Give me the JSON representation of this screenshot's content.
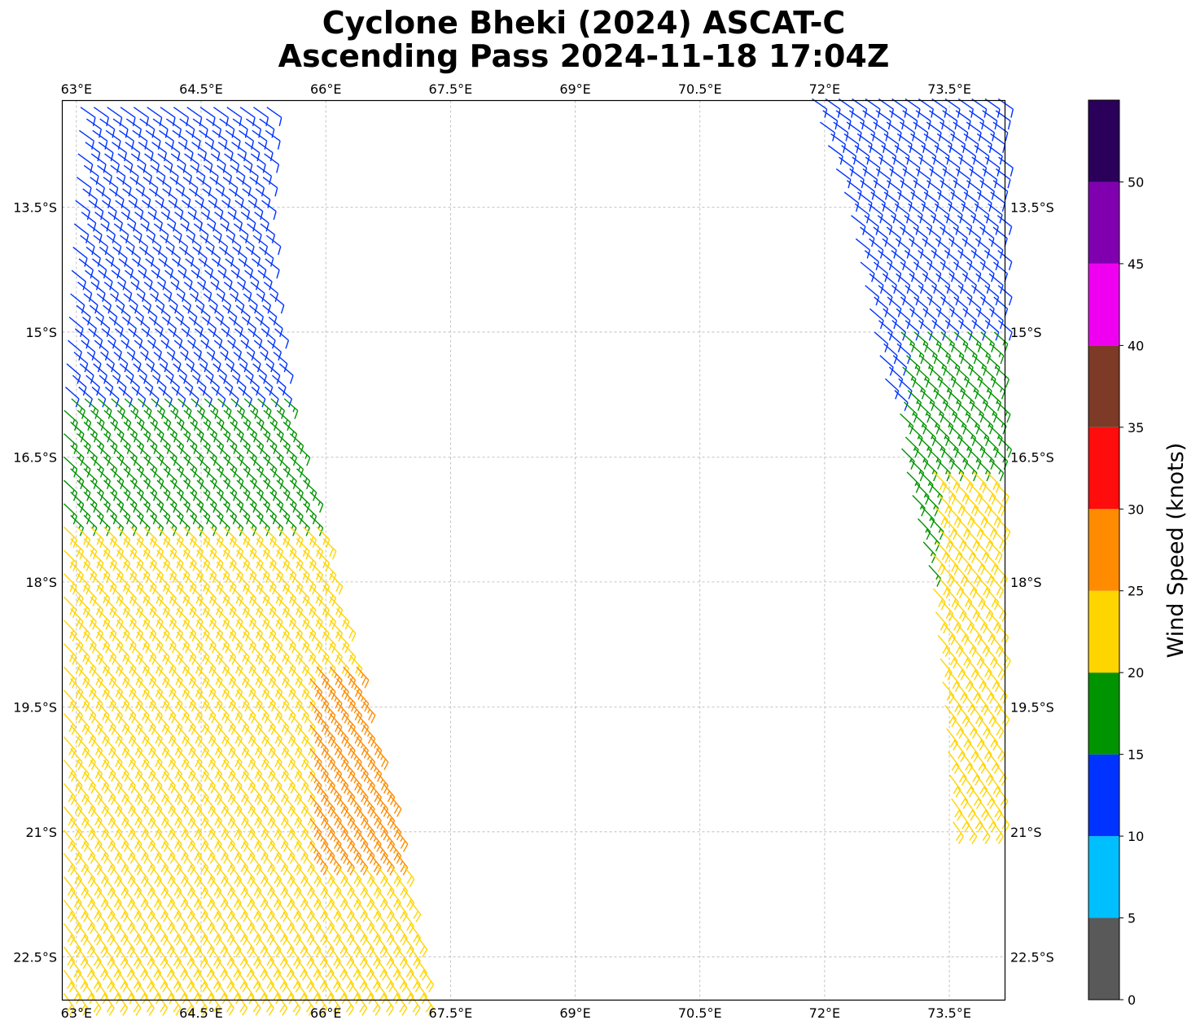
{
  "chart_data": {
    "type": "scatter",
    "title": [
      "Cyclone Bheki (2024) ASCAT-C",
      "Ascending Pass 2024-11-18 17:04Z"
    ],
    "xlim": [
      62.83,
      74.17
    ],
    "ylim": [
      -23.02,
      -12.22
    ],
    "x_ticks": [
      {
        "value": 63.0,
        "label": "63°E"
      },
      {
        "value": 64.5,
        "label": "64.5°E"
      },
      {
        "value": 66.0,
        "label": "66°E"
      },
      {
        "value": 67.5,
        "label": "67.5°E"
      },
      {
        "value": 69.0,
        "label": "69°E"
      },
      {
        "value": 70.5,
        "label": "70.5°E"
      },
      {
        "value": 72.0,
        "label": "72°E"
      },
      {
        "value": 73.5,
        "label": "73.5°E"
      }
    ],
    "y_ticks": [
      {
        "value": -13.5,
        "label": "13.5°S"
      },
      {
        "value": -15.0,
        "label": "15°S"
      },
      {
        "value": -16.5,
        "label": "16.5°S"
      },
      {
        "value": -18.0,
        "label": "18°S"
      },
      {
        "value": -19.5,
        "label": "19.5°S"
      },
      {
        "value": -21.0,
        "label": "21°S"
      },
      {
        "value": -22.5,
        "label": "22.5°S"
      }
    ],
    "grid": true,
    "colorbar": {
      "label": "Wind Speed (knots)",
      "bounds": [
        0,
        5,
        10,
        15,
        20,
        25,
        30,
        35,
        40,
        45,
        50,
        55
      ],
      "tick_labels": [
        "0",
        "5",
        "10",
        "15",
        "20",
        "25",
        "30",
        "35",
        "40",
        "45",
        "50"
      ],
      "colors": [
        "#595959",
        "#00bfff",
        "#0033ff",
        "#009400",
        "#ffd500",
        "#ff8c00",
        "#ff0d0d",
        "#7d3a27",
        "#f000f0",
        "#8000b0",
        "#2a005a"
      ]
    },
    "series": [
      {
        "swath": "west",
        "barb_color_by_speed": true,
        "grid_spacing_deg": [
          0.16,
          0.14
        ],
        "west_edge": [
          [
            -12.3,
            63.05
          ],
          [
            -16.0,
            62.85
          ],
          [
            -19.5,
            62.85
          ],
          [
            -23.0,
            62.85
          ]
        ],
        "east_edge": [
          [
            -12.3,
            65.3
          ],
          [
            -14.0,
            65.3
          ],
          [
            -16.0,
            65.55
          ],
          [
            -16.8,
            65.8
          ],
          [
            -18.0,
            66.1
          ],
          [
            -19.5,
            66.5
          ],
          [
            -21.0,
            66.9
          ],
          [
            -23.0,
            67.25
          ]
        ],
        "speed_regions": [
          {
            "speed_kt": 8,
            "lat_range": [
              -12.3,
              -14.5
            ],
            "lon_range": [
              63.5,
              65.3
            ]
          },
          {
            "speed_kt": 12,
            "lat_range": [
              -12.3,
              -16.8
            ],
            "lon_range": [
              62.85,
              65.5
            ]
          },
          {
            "speed_kt": 17,
            "lat_range": [
              -15.8,
              -20.4
            ],
            "lon_range": [
              62.85,
              65.9
            ]
          },
          {
            "speed_kt": 22,
            "lat_range": [
              -17.3,
              -23.0
            ],
            "lon_range": [
              62.85,
              67.25
            ]
          },
          {
            "speed_kt": 27,
            "lat_range": [
              -19.0,
              -21.3
            ],
            "lon_range": [
              65.8,
              66.9
            ]
          }
        ],
        "wind_direction": "SE trades, backing to E in the south"
      },
      {
        "swath": "east",
        "barb_color_by_speed": true,
        "grid_spacing_deg": [
          0.16,
          0.14
        ],
        "west_edge": [
          [
            -12.2,
            71.85
          ],
          [
            -13.5,
            72.3
          ],
          [
            -15.0,
            72.6
          ],
          [
            -16.5,
            72.95
          ],
          [
            -18.0,
            73.3
          ],
          [
            -19.5,
            73.45
          ],
          [
            -20.95,
            73.55
          ]
        ],
        "east_edge": [
          [
            -12.2,
            74.1
          ],
          [
            -20.95,
            74.1
          ]
        ],
        "speed_regions": [
          {
            "speed_kt": 8,
            "lat_range": [
              -12.2,
              -14.6
            ],
            "lon_range": [
              72.4,
              74.1
            ]
          },
          {
            "speed_kt": 12,
            "lat_range": [
              -12.2,
              -15.8
            ],
            "lon_range": [
              71.85,
              74.1
            ]
          },
          {
            "speed_kt": 17,
            "lat_range": [
              -15.0,
              -19.6
            ],
            "lon_range": [
              72.9,
              74.1
            ]
          },
          {
            "speed_kt": 22,
            "lat_range": [
              -16.6,
              -20.95
            ],
            "lon_range": [
              73.3,
              74.1
            ]
          }
        ],
        "wind_direction": "SE trades"
      }
    ]
  }
}
